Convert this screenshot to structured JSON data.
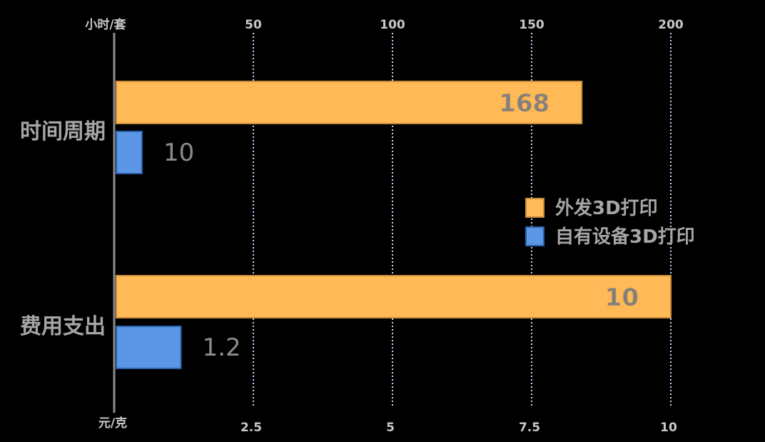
{
  "chart_data": {
    "type": "bar",
    "orientation": "horizontal",
    "categories": [
      "时间周期",
      "费用支出"
    ],
    "series": [
      {
        "name": "外发3D打印",
        "color": "#FFB957",
        "values": [
          168,
          10
        ]
      },
      {
        "name": "自有设备3D打印",
        "color": "#5B97E6",
        "values": [
          10,
          1.2
        ]
      }
    ],
    "top_axis": {
      "unit_label": "小时/套",
      "ticks": [
        "50",
        "100",
        "150",
        "200"
      ],
      "range": [
        0,
        200
      ],
      "applies_to": "时间周期"
    },
    "bottom_axis": {
      "unit_label": "元/克",
      "ticks": [
        "2.5",
        "5",
        "7.5",
        "10"
      ],
      "range": [
        0,
        10
      ],
      "applies_to": "费用支出"
    },
    "data_labels": [
      [
        "168",
        "10"
      ],
      [
        "10",
        "1.2"
      ]
    ],
    "grid": "vertical dotted",
    "legend_placement": "right-center",
    "background": "#000000"
  }
}
